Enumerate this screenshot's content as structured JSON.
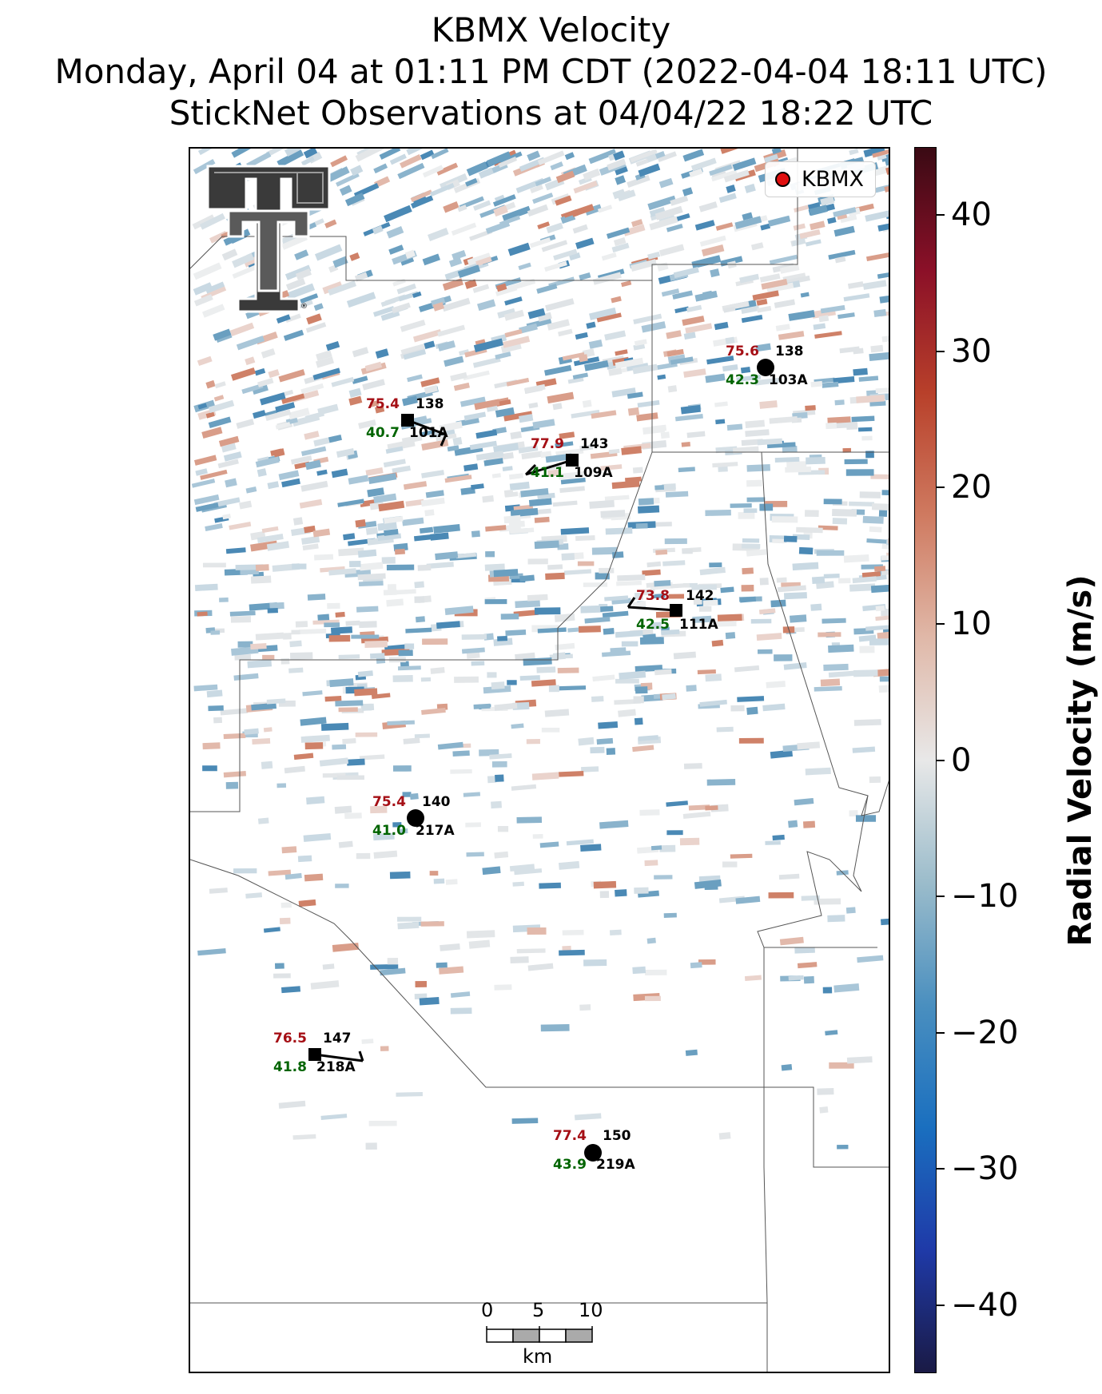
{
  "titles": {
    "line1": "KBMX Velocity",
    "line2": "Monday, April 04 at 01:11 PM CDT (2022-04-04 18:11 UTC)",
    "line3": "StickNet Observations at 04/04/22 18:22 UTC"
  },
  "legend": {
    "label": "KBMX",
    "marker_color": "#e01010"
  },
  "logo": {
    "name": "texas-tech-double-t-logo",
    "mark": "®"
  },
  "colorbar": {
    "label": "Radial Velocity (m/s)",
    "range": [
      -45,
      45
    ],
    "ticks": [
      "40",
      "30",
      "20",
      "10",
      "0",
      "−10",
      "−20",
      "−30",
      "−40"
    ],
    "tick_values": [
      40,
      30,
      20,
      10,
      0,
      -10,
      -20,
      -30,
      -40
    ],
    "colors": [
      "#1a1a45",
      "#1f3aa8",
      "#1a6fbf",
      "#4a8fbf",
      "#9bbccb",
      "#e8e8e8",
      "#e0b8a8",
      "#cf7a60",
      "#b8402a",
      "#8b1028",
      "#3a0a14"
    ]
  },
  "scale_bar": {
    "labels": [
      "0",
      "5",
      "10"
    ],
    "unit": "km"
  },
  "stations": [
    {
      "id": "101A",
      "temp": "75.4",
      "dew": "40.7",
      "pres": "138",
      "marker": "square"
    },
    {
      "id": "109A",
      "temp": "77.9",
      "dew": "41.1",
      "pres": "143",
      "marker": "square"
    },
    {
      "id": "103A",
      "temp": "75.6",
      "dew": "42.3",
      "pres": "138",
      "marker": "circle"
    },
    {
      "id": "111A",
      "temp": "73.8",
      "dew": "42.5",
      "pres": "142",
      "marker": "square"
    },
    {
      "id": "217A",
      "temp": "75.4",
      "dew": "41.0",
      "pres": "140",
      "marker": "circle"
    },
    {
      "id": "218A",
      "temp": "76.5",
      "dew": "41.8",
      "pres": "147",
      "marker": "square"
    },
    {
      "id": "219A",
      "temp": "77.4",
      "dew": "43.9",
      "pres": "150",
      "marker": "circle"
    }
  ]
}
